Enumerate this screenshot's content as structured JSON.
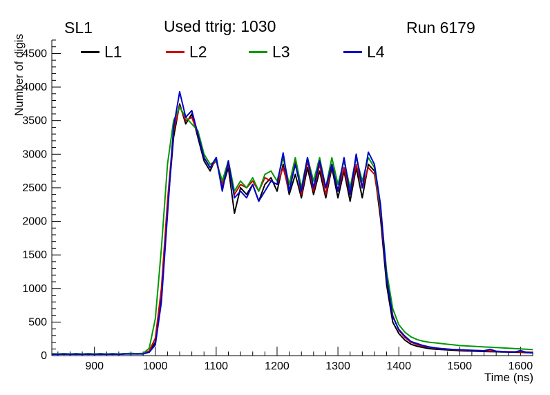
{
  "header": {
    "left": "SL1",
    "center": "Used ttrig: 1030",
    "right": "Run 6179"
  },
  "legend": [
    {
      "label": "L1",
      "color": "#000000"
    },
    {
      "label": "L2",
      "color": "#cc0000"
    },
    {
      "label": "L3",
      "color": "#009900"
    },
    {
      "label": "L4",
      "color": "#0000cc"
    }
  ],
  "chart_data": {
    "type": "line",
    "title": "Used ttrig: 1030",
    "subtitle_left": "SL1",
    "subtitle_right": "Run 6179",
    "xlabel": "Time (ns)",
    "ylabel": "Number of digis",
    "xlim": [
      830,
      1620
    ],
    "ylim": [
      0,
      4700
    ],
    "grid": false,
    "legend_position": "top",
    "xticks": [
      900,
      1000,
      1100,
      1200,
      1300,
      1400,
      1500,
      1600
    ],
    "yticks": [
      0,
      500,
      1000,
      1500,
      2000,
      2500,
      3000,
      3500,
      4000,
      4500
    ],
    "x": [
      830,
      840,
      850,
      860,
      870,
      880,
      890,
      900,
      910,
      920,
      930,
      940,
      950,
      960,
      970,
      980,
      990,
      1000,
      1010,
      1020,
      1030,
      1040,
      1050,
      1060,
      1070,
      1080,
      1090,
      1100,
      1110,
      1120,
      1130,
      1140,
      1150,
      1160,
      1170,
      1180,
      1190,
      1200,
      1210,
      1220,
      1230,
      1240,
      1250,
      1260,
      1270,
      1280,
      1290,
      1300,
      1310,
      1320,
      1330,
      1340,
      1350,
      1360,
      1370,
      1380,
      1390,
      1400,
      1410,
      1420,
      1430,
      1440,
      1450,
      1460,
      1470,
      1480,
      1490,
      1500,
      1510,
      1520,
      1530,
      1540,
      1550,
      1560,
      1570,
      1580,
      1590,
      1600,
      1610,
      1620
    ],
    "series": [
      {
        "name": "L1",
        "color": "#000000",
        "values": [
          20,
          25,
          20,
          25,
          20,
          25,
          20,
          25,
          20,
          25,
          20,
          25,
          30,
          25,
          30,
          25,
          60,
          200,
          900,
          2200,
          3250,
          3750,
          3450,
          3600,
          3250,
          2900,
          2750,
          2950,
          2500,
          2800,
          2120,
          2500,
          2400,
          2550,
          2300,
          2550,
          2650,
          2450,
          2850,
          2400,
          2700,
          2350,
          2800,
          2400,
          2750,
          2350,
          2800,
          2350,
          2750,
          2300,
          2800,
          2350,
          2850,
          2750,
          2050,
          1050,
          500,
          330,
          230,
          170,
          140,
          120,
          105,
          95,
          90,
          85,
          80,
          75,
          70,
          68,
          65,
          62,
          60,
          58,
          55,
          52,
          50,
          48,
          45,
          42
        ]
      },
      {
        "name": "L2",
        "color": "#cc0000",
        "values": [
          25,
          20,
          25,
          20,
          25,
          20,
          25,
          20,
          25,
          20,
          25,
          20,
          25,
          30,
          25,
          30,
          70,
          260,
          1000,
          2300,
          3350,
          3720,
          3500,
          3550,
          3300,
          2950,
          2800,
          2900,
          2550,
          2850,
          2400,
          2550,
          2500,
          2600,
          2450,
          2650,
          2600,
          2550,
          2800,
          2450,
          2900,
          2400,
          2900,
          2450,
          2850,
          2400,
          2850,
          2450,
          2800,
          2400,
          2850,
          2500,
          2800,
          2700,
          2150,
          1150,
          600,
          380,
          270,
          200,
          165,
          140,
          125,
          110,
          100,
          95,
          90,
          85,
          80,
          78,
          75,
          72,
          70,
          66,
          62,
          60,
          58,
          55,
          52,
          50
        ]
      },
      {
        "name": "L3",
        "color": "#009900",
        "values": [
          30,
          25,
          30,
          25,
          30,
          25,
          30,
          25,
          30,
          25,
          30,
          25,
          30,
          35,
          30,
          35,
          110,
          550,
          1600,
          2850,
          3500,
          3700,
          3550,
          3450,
          3350,
          3000,
          2850,
          2900,
          2600,
          2900,
          2450,
          2600,
          2500,
          2650,
          2450,
          2700,
          2750,
          2600,
          2950,
          2550,
          2950,
          2500,
          2950,
          2600,
          2950,
          2500,
          2950,
          2550,
          2900,
          2500,
          2950,
          2600,
          2950,
          2800,
          2200,
          1250,
          700,
          460,
          350,
          280,
          240,
          215,
          200,
          190,
          180,
          170,
          160,
          150,
          145,
          140,
          135,
          130,
          125,
          120,
          115,
          110,
          105,
          100,
          95,
          90
        ]
      },
      {
        "name": "L4",
        "color": "#0000cc",
        "values": [
          20,
          20,
          25,
          20,
          25,
          20,
          25,
          20,
          25,
          20,
          25,
          20,
          25,
          25,
          25,
          25,
          50,
          160,
          800,
          2100,
          3400,
          3930,
          3550,
          3650,
          3300,
          2950,
          2800,
          2950,
          2450,
          2900,
          2350,
          2450,
          2350,
          2550,
          2300,
          2450,
          2600,
          2550,
          3020,
          2450,
          2850,
          2450,
          2950,
          2500,
          2900,
          2500,
          2850,
          2450,
          2950,
          2400,
          3000,
          2500,
          3030,
          2850,
          2250,
          1150,
          580,
          390,
          290,
          210,
          180,
          150,
          130,
          115,
          105,
          98,
          92,
          88,
          84,
          80,
          76,
          72,
          95,
          65,
          60,
          55,
          52,
          75,
          48,
          42
        ]
      }
    ]
  }
}
